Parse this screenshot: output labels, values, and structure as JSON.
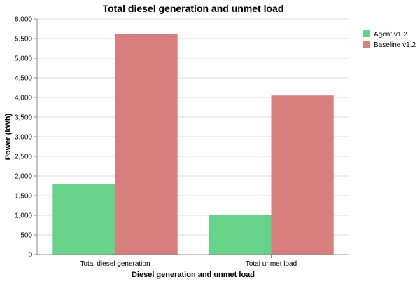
{
  "chart_data": {
    "type": "bar",
    "title": "Total diesel generation and unmet load",
    "xlabel": "Diesel generation and unmet load",
    "ylabel": "Power (kWh)",
    "categories": [
      "Total diesel generation",
      "Total unmet load"
    ],
    "series": [
      {
        "name": "Agent v1.2",
        "values": [
          1790,
          1000
        ],
        "color": "#68d18a"
      },
      {
        "name": "Baseline v1.2",
        "values": [
          5610,
          4050
        ],
        "color": "#d77f7f"
      }
    ],
    "ylim": [
      0,
      6000
    ],
    "yticks": [
      "0",
      "500",
      "1,000",
      "1,500",
      "2,000",
      "2,500",
      "3,000",
      "3,500",
      "4,000",
      "4,500",
      "5,000",
      "5,500",
      "6,000"
    ],
    "grid": true,
    "legend_position": "top-right"
  }
}
